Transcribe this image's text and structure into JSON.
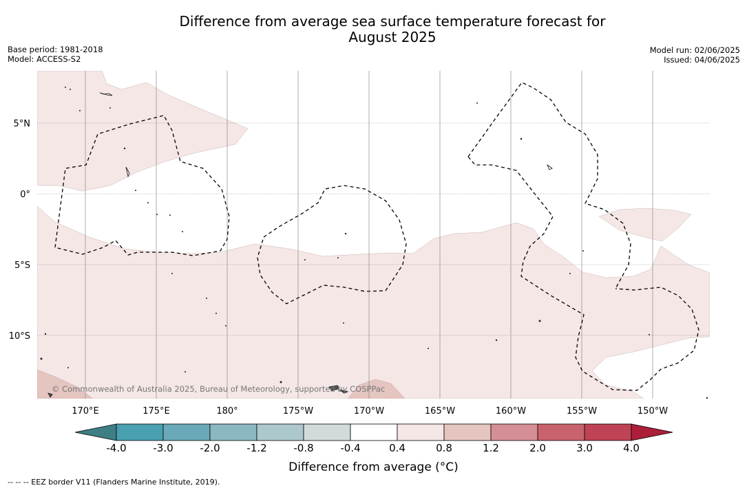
{
  "title": {
    "line1": "Difference from average sea surface temperature forecast for",
    "line2": "August 2025"
  },
  "meta_left": {
    "base_period": "Base period: 1981-2018",
    "model": "Model: ACCESS-S2"
  },
  "meta_right": {
    "model_run": "Model run: 02/06/2025",
    "issued": "Issued: 04/06/2025"
  },
  "map": {
    "lat_labels": [
      "5°N",
      "0°",
      "5°S",
      "10°S"
    ],
    "lon_labels": [
      "170°E",
      "175°E",
      "180°",
      "175°W",
      "170°W",
      "165°W",
      "160°W",
      "155°W",
      "150°W"
    ],
    "copyright": "© Commonwealth of Australia 2025, Bureau of Meteorology, supported by COSPPac",
    "colors": {
      "anomaly_0_4_to_0_8": "#f4e7e6",
      "anomaly_0_8_to_1_2": "#e4c5c0",
      "land": "#555555",
      "gridline": "#777777"
    }
  },
  "colorbar": {
    "ticks": [
      "-4.0",
      "-3.0",
      "-2.0",
      "-1.2",
      "-0.8",
      "-0.4",
      "0.4",
      "0.8",
      "1.2",
      "2.0",
      "3.0",
      "4.0"
    ],
    "colors": [
      "#3e7f86",
      "#4aa0b0",
      "#6aa9b8",
      "#8cb8c3",
      "#adc8cc",
      "#d2dada",
      "#ffffff",
      "#f4e7e6",
      "#e4c5c0",
      "#d68f95",
      "#c8636c",
      "#be4354",
      "#ab1f3a"
    ],
    "label": "Difference from average (°C)"
  },
  "footnote": "-- -- -- EEZ border V11 (Flanders Marine Institute, 2019)."
}
